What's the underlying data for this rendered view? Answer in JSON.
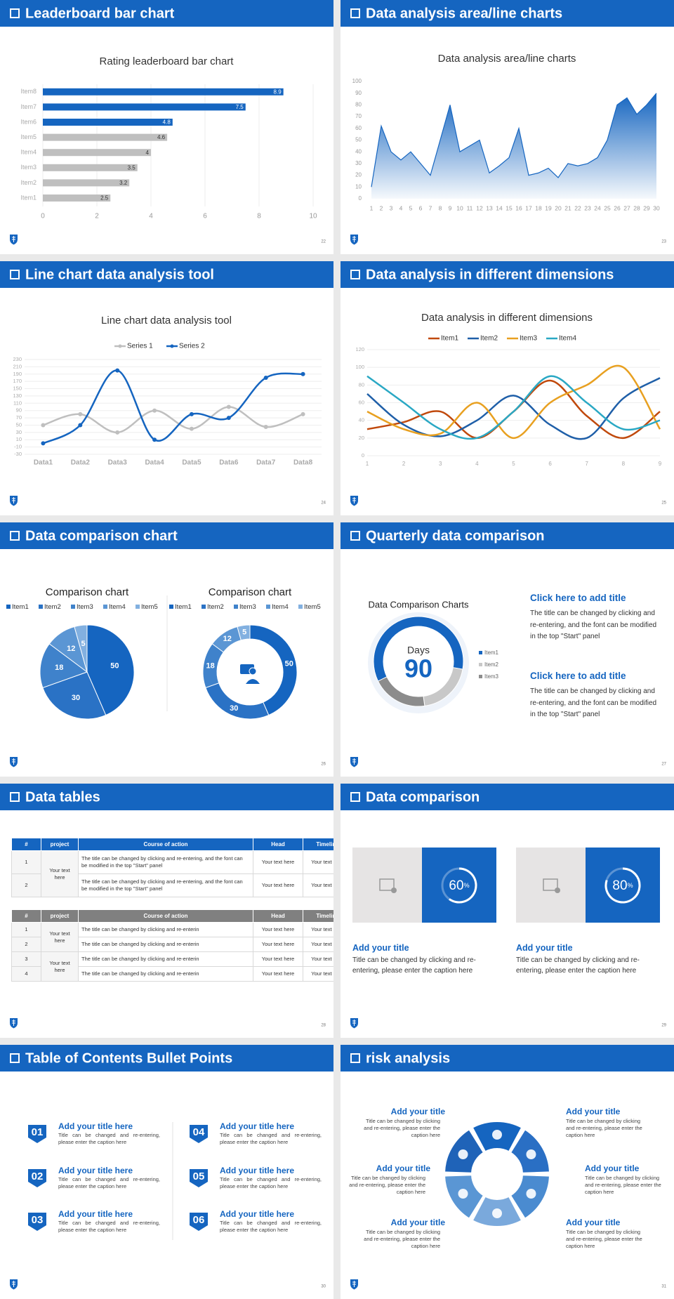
{
  "slides": [
    {
      "title": "Leaderboard bar chart",
      "page": "22"
    },
    {
      "title": "Data analysis area/line charts",
      "page": "23"
    },
    {
      "title": "Line chart data analysis tool",
      "page": "24"
    },
    {
      "title": "Data analysis in different dimensions",
      "page": "25"
    },
    {
      "title": "Data comparison chart",
      "page": "26"
    },
    {
      "title": "Quarterly data comparison",
      "page": "27"
    },
    {
      "title": "Data tables",
      "page": "28"
    },
    {
      "title": "Data comparison",
      "page": "29"
    },
    {
      "title": "Table of Contents Bullet Points",
      "page": "30"
    },
    {
      "title": "risk analysis",
      "page": "31"
    }
  ],
  "chart_data": [
    {
      "type": "hbar",
      "title": "Rating leaderboard bar chart",
      "categories": [
        "Item1",
        "Item2",
        "Item3",
        "Item4",
        "Item5",
        "Item6",
        "Item7",
        "Item8"
      ],
      "values": [
        2.5,
        3.2,
        3.5,
        4,
        4.6,
        4.8,
        7.5,
        8.9
      ],
      "colors": [
        "#bfbfbf",
        "#bfbfbf",
        "#bfbfbf",
        "#bfbfbf",
        "#bfbfbf",
        "#1565c0",
        "#1565c0",
        "#1565c0"
      ],
      "xlim": [
        0,
        10
      ],
      "xticks": [
        0,
        2,
        4,
        6,
        8,
        10
      ],
      "grid": true
    },
    {
      "type": "area",
      "title": "Data analysis area/line charts",
      "categories": [
        "1",
        "2",
        "3",
        "4",
        "5",
        "6",
        "7",
        "8",
        "9",
        "10",
        "11",
        "12",
        "13",
        "14",
        "15",
        "16",
        "17",
        "18",
        "19",
        "20",
        "21",
        "22",
        "23",
        "24",
        "25",
        "26",
        "27",
        "28",
        "29",
        "30"
      ],
      "values": [
        10,
        62,
        40,
        33,
        40,
        30,
        20,
        50,
        80,
        40,
        45,
        50,
        22,
        28,
        35,
        60,
        20,
        22,
        26,
        18,
        30,
        28,
        30,
        35,
        50,
        80,
        86,
        72,
        80,
        90
      ],
      "color": "#1565c0",
      "ylim": [
        0,
        100
      ],
      "yticks": [
        0,
        10,
        20,
        30,
        40,
        50,
        60,
        70,
        80,
        90,
        100
      ]
    },
    {
      "type": "line",
      "title": "Line chart data analysis tool",
      "categories": [
        "Data1",
        "Data2",
        "Data3",
        "Data4",
        "Data5",
        "Data6",
        "Data7",
        "Data8"
      ],
      "series": [
        {
          "name": "Series 1",
          "color": "#bfbfbf",
          "values": [
            50,
            80,
            30,
            90,
            40,
            100,
            45,
            80
          ]
        },
        {
          "name": "Series 2",
          "color": "#1565c0",
          "values": [
            0,
            50,
            200,
            10,
            80,
            70,
            180,
            190
          ]
        }
      ],
      "ylim": [
        -30,
        230
      ],
      "yticks": [
        -30,
        -10,
        10,
        30,
        50,
        70,
        90,
        110,
        130,
        150,
        170,
        190,
        210,
        230
      ],
      "grid": true,
      "smooth": true,
      "markers": true
    },
    {
      "type": "line",
      "title": "Data analysis in different dimensions",
      "categories": [
        "1",
        "2",
        "3",
        "4",
        "5",
        "6",
        "7",
        "8",
        "9"
      ],
      "series": [
        {
          "name": "Item1",
          "color": "#c0490c",
          "values": [
            30,
            38,
            50,
            20,
            50,
            85,
            45,
            20,
            50
          ]
        },
        {
          "name": "Item2",
          "color": "#1f5fa8",
          "values": [
            70,
            35,
            22,
            40,
            68,
            35,
            20,
            65,
            88
          ]
        },
        {
          "name": "Item3",
          "color": "#e8a020",
          "values": [
            50,
            30,
            25,
            60,
            20,
            60,
            80,
            100,
            30
          ]
        },
        {
          "name": "Item4",
          "color": "#2aa8c4",
          "values": [
            90,
            60,
            30,
            20,
            50,
            90,
            60,
            30,
            40
          ]
        }
      ],
      "ylim": [
        0,
        120
      ],
      "yticks": [
        0,
        20,
        40,
        60,
        80,
        100,
        120
      ],
      "grid": true,
      "smooth": true,
      "markers": false
    },
    {
      "type": "pie",
      "title": "Comparison chart",
      "categories": [
        "Item1",
        "Item2",
        "Item3",
        "Item4",
        "Item5"
      ],
      "values": [
        50,
        30,
        18,
        12,
        5
      ],
      "colors": [
        "#1565c0",
        "#2a72c5",
        "#3f82cb",
        "#5b96d4",
        "#82b0e0"
      ]
    },
    {
      "type": "donut",
      "title": "Comparison chart",
      "categories": [
        "Item1",
        "Item2",
        "Item3",
        "Item4",
        "Item5"
      ],
      "values": [
        50,
        30,
        18,
        12,
        5
      ],
      "colors": [
        "#1565c0",
        "#2a72c5",
        "#3f82cb",
        "#5b96d4",
        "#82b0e0"
      ]
    },
    {
      "type": "donut",
      "title": "Data Comparison Charts",
      "categories": [
        "Item1",
        "Item2",
        "Item3"
      ],
      "values": [
        60,
        20,
        20
      ],
      "colors": [
        "#1565c0",
        "#c8c8c8",
        "#8c8c8c"
      ],
      "center_label": "Days",
      "center_value": 90
    }
  ],
  "quarterly": [
    {
      "title": "Click here to add title",
      "text": "The title can be changed by clicking and re-entering, and the font can be modified in the top \"Start\" panel"
    },
    {
      "title": "Click here to add title",
      "text": "The title can be changed by clicking and re-entering, and the font can be modified in the top \"Start\" panel"
    }
  ],
  "tables": [
    {
      "header_color": "#1565c0",
      "header": [
        "#",
        "project",
        "Course of action",
        "Head",
        "Timeline"
      ],
      "groups": [
        {
          "project": "Your text here",
          "rows": [
            [
              "1",
              "The title can be changed by clicking and re-entering, and the font can be modified in the top \"Start\" panel",
              "Your text here",
              "Your text here"
            ],
            [
              "2",
              "The title can be changed by clicking and re-entering, and the font can be modified in the top \"Start\" panel",
              "Your text here",
              "Your text here"
            ]
          ]
        }
      ]
    },
    {
      "header_color": "#808080",
      "header": [
        "#",
        "project",
        "Course of action",
        "Head",
        "Timeline"
      ],
      "groups": [
        {
          "project": "Your text here",
          "rows": [
            [
              "1",
              "The title can be changed by clicking and re-enterin",
              "Your text here",
              "Your text here"
            ],
            [
              "2",
              "The title can be changed by clicking and re-enterin",
              "Your text here",
              "Your text here"
            ]
          ]
        },
        {
          "project": "Your text here",
          "rows": [
            [
              "3",
              "The title can be changed by clicking and re-enterin",
              "Your text here",
              "Your text here"
            ],
            [
              "4",
              "The title can be changed by clicking and re-enterin",
              "Your text here",
              "Your text here"
            ]
          ]
        }
      ]
    }
  ],
  "comparison": [
    {
      "percent": 60,
      "unit": "%",
      "title": "Add your title",
      "text": "Title can be changed by clicking and re-entering, please enter the caption here"
    },
    {
      "percent": 80,
      "unit": "%",
      "title": "Add your title",
      "text": "Title can be changed by clicking and re-entering, please enter the caption here"
    }
  ],
  "toc": [
    {
      "number": "01",
      "title": "Add your title here",
      "text": "Title can be changed and re-entering, please enter the caption here"
    },
    {
      "number": "02",
      "title": "Add your title here",
      "text": "Title can be changed and re-entering, please enter the caption here"
    },
    {
      "number": "03",
      "title": "Add your title here",
      "text": "Title can be changed and re-entering, please enter the caption here"
    },
    {
      "number": "04",
      "title": "Add your title here",
      "text": "Title can be changed and re-entering, please enter the caption here"
    },
    {
      "number": "05",
      "title": "Add your title here",
      "text": "Title can be changed and re-entering, please enter the caption here"
    },
    {
      "number": "06",
      "title": "Add your title here",
      "text": "Title can be changed and re-entering, please enter the caption here"
    }
  ],
  "risk": [
    {
      "title": "Add your title",
      "text": "Title can be changed by clicking and re-entering, please enter the caption here"
    },
    {
      "title": "Add your title",
      "text": "Title can be changed by clicking and re-entering, please enter the caption here"
    },
    {
      "title": "Add your title",
      "text": "Title can be changed by clicking and re-entering, please enter the caption here"
    },
    {
      "title": "Add your title",
      "text": "Title can be changed by clicking and re-entering, please enter the caption here"
    },
    {
      "title": "Add your title",
      "text": "Title can be changed by clicking and re-entering, please enter the caption here"
    },
    {
      "title": "Add your title",
      "text": "Title can be changed by clicking and re-entering, please enter the caption here"
    }
  ]
}
